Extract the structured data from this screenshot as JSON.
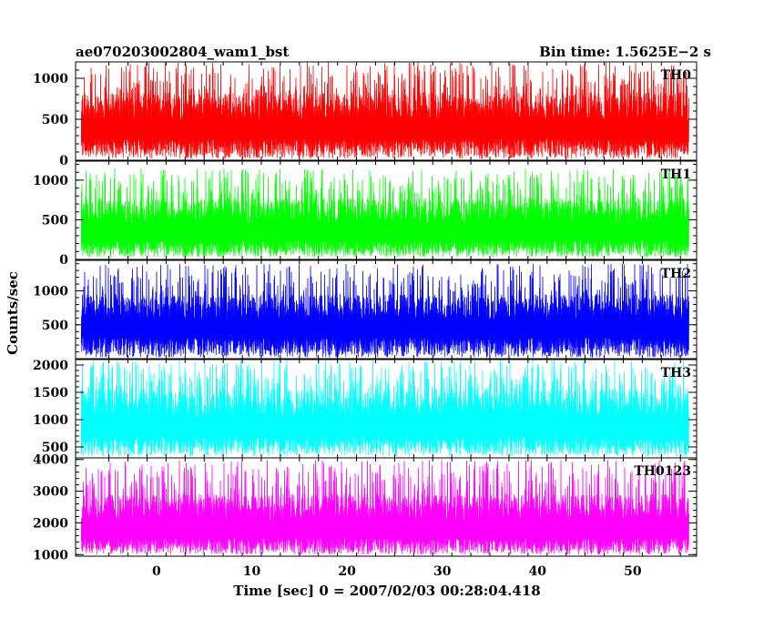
{
  "header": {
    "title": "ae070203002804_wam1_bst",
    "bin_time": "Bin time: 1.5625E−2 s"
  },
  "chart_data": {
    "type": "line",
    "xlabel": "Time [sec] 0 = 2007/02/03 00:28:04.418",
    "ylabel": "Counts/sec",
    "xlim": [
      -8.5,
      56.7
    ],
    "data_range": [
      -7.9,
      55.9
    ],
    "x_tick_labels": [
      "0",
      "10",
      "20",
      "30",
      "40",
      "50"
    ],
    "x_ticks": [
      0,
      10,
      20,
      30,
      40,
      50
    ],
    "panels": [
      {
        "name": "TH0",
        "color": "#ff0000",
        "ylim": [
          0,
          1200
        ],
        "ticks": [
          0,
          500,
          1000
        ],
        "tick_labels": [
          "0",
          "500",
          "1000"
        ],
        "mean": 560,
        "spread": 170,
        "spike_max": 1200,
        "floor": 20
      },
      {
        "name": "TH1",
        "color": "#00ff00",
        "ylim": [
          0,
          1240
        ],
        "ticks": [
          0,
          500,
          1000
        ],
        "tick_labels": [
          "0",
          "500",
          "1000"
        ],
        "mean": 520,
        "spread": 160,
        "spike_max": 1150,
        "floor": 30
      },
      {
        "name": "TH2",
        "color": "#0000ff",
        "ylim": [
          0,
          1450
        ],
        "ticks": [
          500,
          1000
        ],
        "tick_labels": [
          "500",
          "1000"
        ],
        "mean": 650,
        "spread": 190,
        "spike_max": 1400,
        "floor": 20
      },
      {
        "name": "TH3",
        "color": "#00ffff",
        "ylim": [
          300,
          2100
        ],
        "ticks": [
          500,
          1000,
          1500,
          2000
        ],
        "tick_labels": [
          "500",
          "1000",
          "1500",
          "2000"
        ],
        "mean": 1150,
        "spread": 260,
        "spike_max": 2100,
        "floor": 330
      },
      {
        "name": "TH0123",
        "color": "#ff00ff",
        "ylim": [
          950,
          4050
        ],
        "ticks": [
          1000,
          2000,
          3000,
          4000
        ],
        "tick_labels": [
          "1000",
          "2000",
          "3000",
          "4000"
        ],
        "mean": 2250,
        "spread": 420,
        "spike_max": 4000,
        "floor": 1000
      }
    ]
  }
}
